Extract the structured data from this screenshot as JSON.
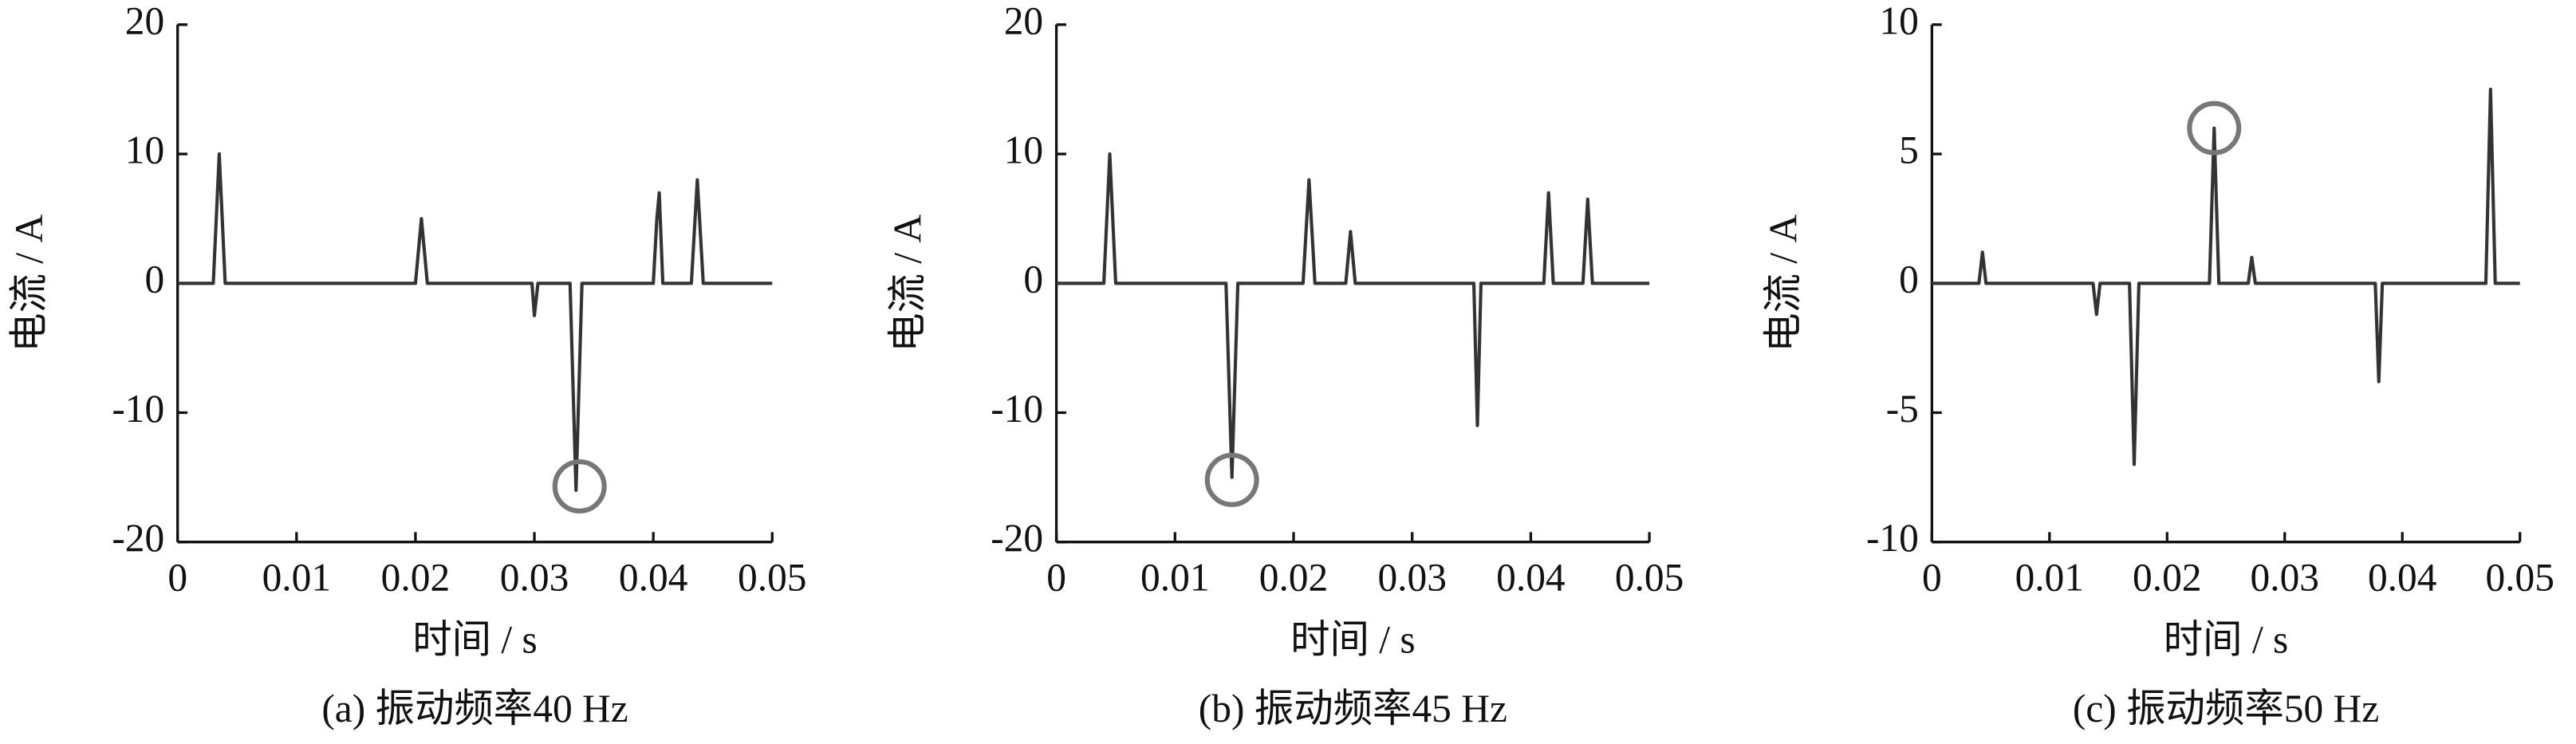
{
  "chart_data": [
    {
      "type": "line",
      "caption": "(a)  振动频率40 Hz",
      "xlabel": "时间 / s",
      "ylabel": "电流 / A",
      "color": "#333333",
      "xlim": [
        0,
        0.05
      ],
      "ylim": [
        -20,
        20
      ],
      "xticks": [
        0,
        0.01,
        0.02,
        0.03,
        0.04,
        0.05
      ],
      "yticks": [
        -20,
        -10,
        0,
        10,
        20
      ],
      "x": [
        0,
        0.003,
        0.0035,
        0.004,
        0.02,
        0.0205,
        0.021,
        0.0298,
        0.03,
        0.0303,
        0.033,
        0.0335,
        0.034,
        0.04,
        0.0403,
        0.0405,
        0.0408,
        0.0432,
        0.0437,
        0.0442,
        0.05
      ],
      "values": [
        0,
        0,
        10,
        0,
        0,
        5,
        0,
        0,
        -2.5,
        0,
        0,
        -16,
        0,
        0,
        5,
        7,
        0,
        0,
        8,
        0,
        0
      ],
      "highlight": {
        "x": 0.0338,
        "y": -15.7
      }
    },
    {
      "type": "line",
      "caption": "(b)  振动频率45 Hz",
      "xlabel": "时间 / s",
      "ylabel": "电流 / A",
      "color": "#333333",
      "xlim": [
        0,
        0.05
      ],
      "ylim": [
        -20,
        20
      ],
      "xticks": [
        0,
        0.01,
        0.02,
        0.03,
        0.04,
        0.05
      ],
      "yticks": [
        -20,
        -10,
        0,
        10,
        20
      ],
      "x": [
        0,
        0.004,
        0.0045,
        0.005,
        0.0143,
        0.0148,
        0.0153,
        0.0208,
        0.0213,
        0.0218,
        0.0244,
        0.0248,
        0.0252,
        0.0352,
        0.0355,
        0.0358,
        0.0411,
        0.0415,
        0.0419,
        0.0444,
        0.0448,
        0.0452,
        0.05
      ],
      "values": [
        0,
        0,
        10,
        0,
        0,
        -15,
        0,
        0,
        8,
        0,
        0,
        4,
        0,
        0,
        -11,
        0,
        0,
        7,
        0,
        0,
        6.5,
        0,
        0
      ],
      "highlight": {
        "x": 0.0148,
        "y": -15.2
      }
    },
    {
      "type": "line",
      "caption": "(c)  振动频率50 Hz",
      "xlabel": "时间 / s",
      "ylabel": "电流 / A",
      "color": "#333333",
      "xlim": [
        0,
        0.05
      ],
      "ylim": [
        -10,
        10
      ],
      "xticks": [
        0,
        0.01,
        0.02,
        0.03,
        0.04,
        0.05
      ],
      "yticks": [
        -10,
        -5,
        0,
        5,
        10
      ],
      "x": [
        0,
        0.004,
        0.0043,
        0.0046,
        0.0137,
        0.014,
        0.0143,
        0.0168,
        0.0172,
        0.0176,
        0.0236,
        0.024,
        0.0244,
        0.0269,
        0.0272,
        0.0275,
        0.0377,
        0.038,
        0.0383,
        0.0471,
        0.0475,
        0.0479,
        0.05
      ],
      "values": [
        0,
        0,
        1.2,
        0,
        0,
        -1.2,
        0,
        0,
        -7,
        0,
        0,
        6,
        0,
        0,
        1,
        0,
        0,
        -3.8,
        0,
        0,
        7.5,
        0,
        0
      ],
      "highlight": {
        "x": 0.024,
        "y": 6
      }
    }
  ]
}
